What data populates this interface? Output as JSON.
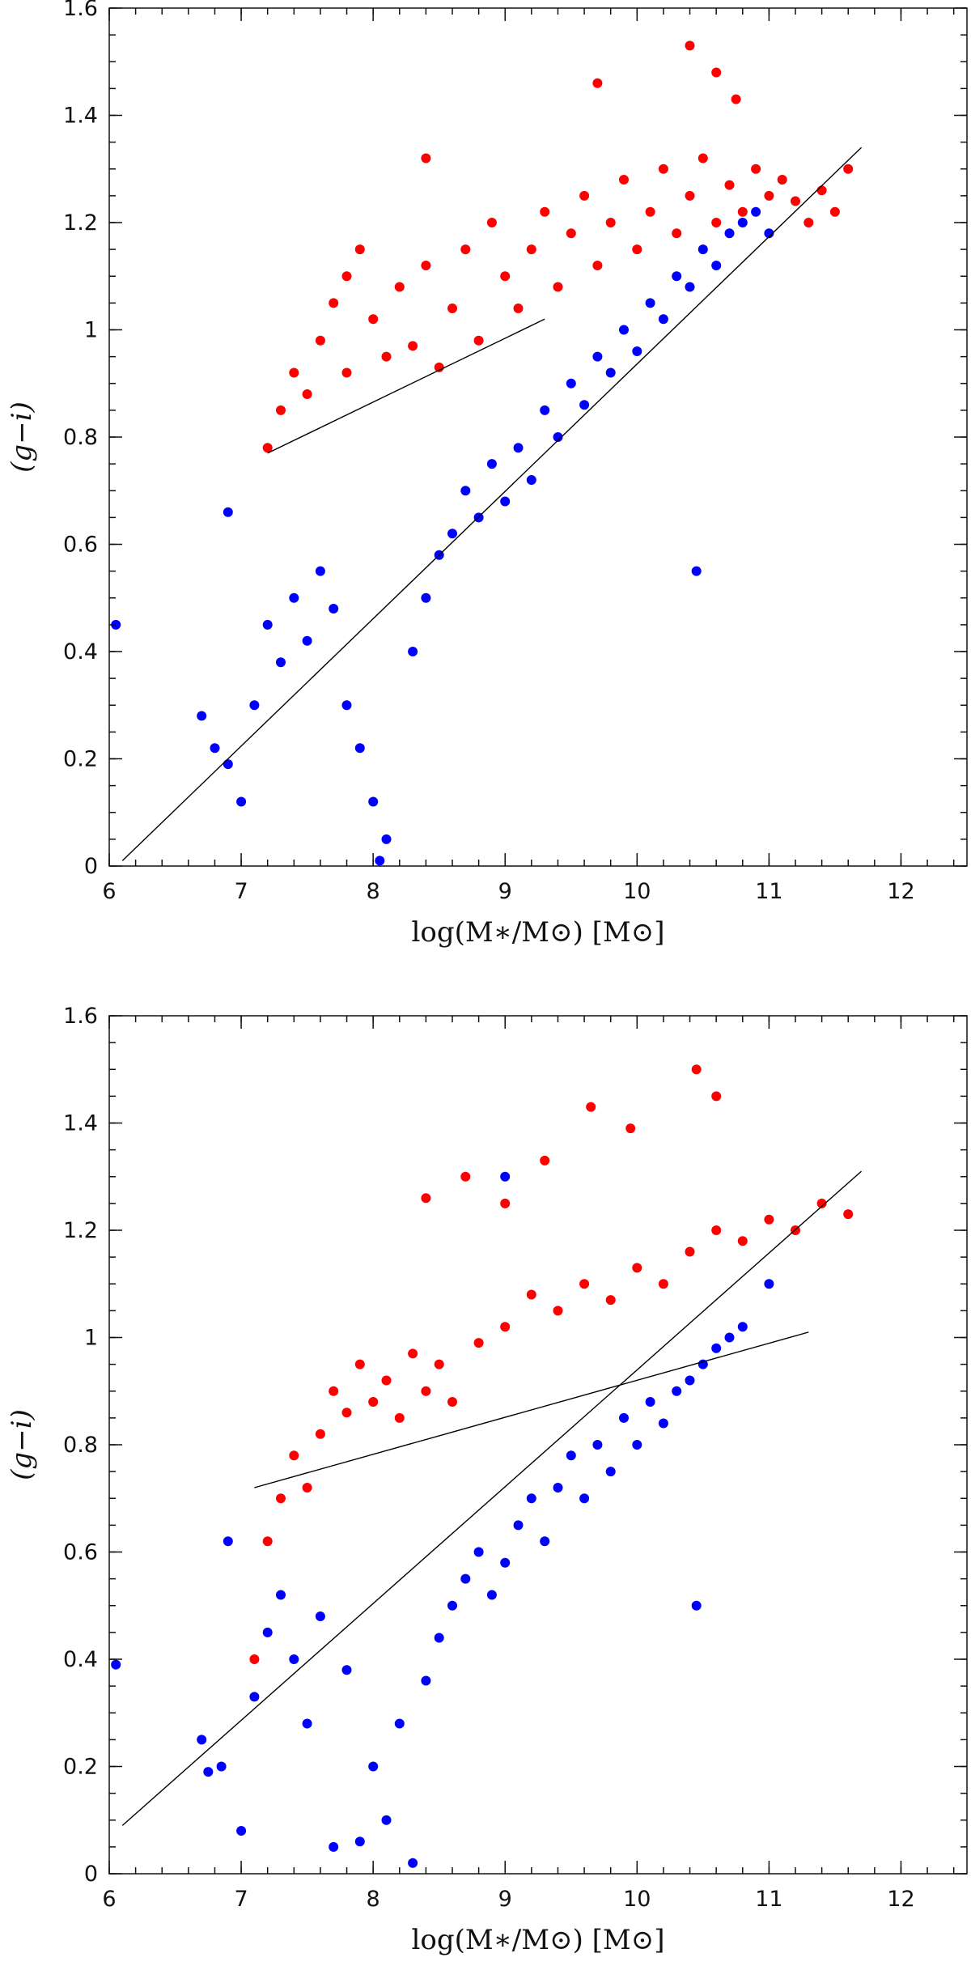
{
  "chart_data": [
    {
      "type": "scatter",
      "title": "",
      "xlabel": "log(M∗/M⊙) [M⊙]",
      "ylabel": "(g−i)",
      "xlim": [
        6,
        12.5
      ],
      "ylim": [
        0,
        1.6
      ],
      "xticks": [
        6,
        7,
        8,
        9,
        10,
        11,
        12
      ],
      "yticks": [
        0,
        0.2,
        0.4,
        0.6,
        0.8,
        1,
        1.2,
        1.4,
        1.6
      ],
      "xtick_labels": [
        "6",
        "7",
        "8",
        "9",
        "10",
        "11",
        "12"
      ],
      "ytick_labels": [
        "0",
        "0.2",
        "0.4",
        "0.6",
        "0.8",
        "1",
        "1.2",
        "1.4",
        "1.6"
      ],
      "series": [
        {
          "name": "red",
          "color": "#ff0000",
          "points": [
            [
              7.2,
              0.78
            ],
            [
              7.3,
              0.85
            ],
            [
              7.4,
              0.92
            ],
            [
              7.5,
              0.88
            ],
            [
              7.6,
              0.98
            ],
            [
              7.7,
              1.05
            ],
            [
              7.8,
              1.1
            ],
            [
              7.8,
              0.92
            ],
            [
              7.9,
              1.15
            ],
            [
              8,
              1.02
            ],
            [
              8.1,
              0.95
            ],
            [
              8.2,
              1.08
            ],
            [
              8.3,
              0.97
            ],
            [
              8.4,
              1.12
            ],
            [
              8.5,
              0.93
            ],
            [
              8.6,
              1.04
            ],
            [
              8.7,
              1.15
            ],
            [
              8.8,
              0.98
            ],
            [
              8.9,
              1.2
            ],
            [
              9,
              1.1
            ],
            [
              9.1,
              1.04
            ],
            [
              9.2,
              1.15
            ],
            [
              9.3,
              1.22
            ],
            [
              9.4,
              1.08
            ],
            [
              9.5,
              1.18
            ],
            [
              9.6,
              1.25
            ],
            [
              9.7,
              1.12
            ],
            [
              9.8,
              1.2
            ],
            [
              9.9,
              1.28
            ],
            [
              10,
              1.15
            ],
            [
              10.1,
              1.22
            ],
            [
              10.2,
              1.3
            ],
            [
              10.3,
              1.18
            ],
            [
              10.4,
              1.25
            ],
            [
              10.5,
              1.32
            ],
            [
              10.6,
              1.2
            ],
            [
              10.7,
              1.27
            ],
            [
              10.8,
              1.22
            ],
            [
              10.9,
              1.3
            ],
            [
              11,
              1.25
            ],
            [
              11.1,
              1.28
            ],
            [
              11.2,
              1.24
            ],
            [
              11.3,
              1.2
            ],
            [
              11.4,
              1.26
            ],
            [
              11.5,
              1.22
            ],
            [
              11.6,
              1.3
            ],
            [
              10.4,
              1.53
            ],
            [
              10.6,
              1.48
            ],
            [
              9.7,
              1.46
            ],
            [
              10.75,
              1.43
            ],
            [
              8.4,
              1.32
            ]
          ]
        },
        {
          "name": "blue",
          "color": "#0000ff",
          "points": [
            [
              6.05,
              0.45
            ],
            [
              6.7,
              0.28
            ],
            [
              6.8,
              0.22
            ],
            [
              6.9,
              0.19
            ],
            [
              7,
              0.12
            ],
            [
              7.1,
              0.3
            ],
            [
              7.2,
              0.45
            ],
            [
              7.3,
              0.38
            ],
            [
              7.4,
              0.5
            ],
            [
              7.5,
              0.42
            ],
            [
              7.6,
              0.55
            ],
            [
              7.7,
              0.48
            ],
            [
              7.8,
              0.3
            ],
            [
              7.9,
              0.22
            ],
            [
              8,
              0.12
            ],
            [
              8.05,
              0.01
            ],
            [
              8.1,
              0.05
            ],
            [
              8.3,
              0.4
            ],
            [
              8.4,
              0.5
            ],
            [
              8.5,
              0.58
            ],
            [
              8.6,
              0.62
            ],
            [
              8.7,
              0.7
            ],
            [
              8.8,
              0.65
            ],
            [
              8.9,
              0.75
            ],
            [
              9,
              0.68
            ],
            [
              9.1,
              0.78
            ],
            [
              9.2,
              0.72
            ],
            [
              9.3,
              0.85
            ],
            [
              9.4,
              0.8
            ],
            [
              9.5,
              0.9
            ],
            [
              9.6,
              0.86
            ],
            [
              9.7,
              0.95
            ],
            [
              9.8,
              0.92
            ],
            [
              9.9,
              1
            ],
            [
              10,
              0.96
            ],
            [
              10.1,
              1.05
            ],
            [
              10.2,
              1.02
            ],
            [
              10.3,
              1.1
            ],
            [
              10.4,
              1.08
            ],
            [
              10.5,
              1.15
            ],
            [
              10.6,
              1.12
            ],
            [
              10.7,
              1.18
            ],
            [
              10.8,
              1.2
            ],
            [
              10.9,
              1.22
            ],
            [
              11,
              1.18
            ],
            [
              10.45,
              0.55
            ],
            [
              6.9,
              0.66
            ]
          ]
        }
      ],
      "fit_lines": [
        {
          "x": [
            6.1,
            11.7
          ],
          "y": [
            0.01,
            1.34
          ],
          "color": "#000000"
        },
        {
          "x": [
            7.2,
            9.3
          ],
          "y": [
            0.77,
            1.02
          ],
          "color": "#000000"
        }
      ]
    },
    {
      "type": "scatter",
      "title": "",
      "xlabel": "log(M∗/M⊙) [M⊙]",
      "ylabel": "(g−i)",
      "xlim": [
        6,
        12.5
      ],
      "ylim": [
        0,
        1.6
      ],
      "xticks": [
        6,
        7,
        8,
        9,
        10,
        11,
        12
      ],
      "yticks": [
        0,
        0.2,
        0.4,
        0.6,
        0.8,
        1,
        1.2,
        1.4,
        1.6
      ],
      "xtick_labels": [
        "6",
        "7",
        "8",
        "9",
        "10",
        "11",
        "12"
      ],
      "ytick_labels": [
        "0",
        "0.2",
        "0.4",
        "0.6",
        "0.8",
        "1",
        "1.2",
        "1.4",
        "1.6"
      ],
      "series": [
        {
          "name": "red",
          "color": "#ff0000",
          "points": [
            [
              7.1,
              0.4
            ],
            [
              7.2,
              0.62
            ],
            [
              7.3,
              0.7
            ],
            [
              7.4,
              0.78
            ],
            [
              7.5,
              0.72
            ],
            [
              7.6,
              0.82
            ],
            [
              7.7,
              0.9
            ],
            [
              7.8,
              0.86
            ],
            [
              7.9,
              0.95
            ],
            [
              8,
              0.88
            ],
            [
              8.1,
              0.92
            ],
            [
              8.2,
              0.85
            ],
            [
              8.3,
              0.97
            ],
            [
              8.4,
              0.9
            ],
            [
              8.5,
              0.95
            ],
            [
              8.6,
              0.88
            ],
            [
              8.8,
              0.99
            ],
            [
              9,
              1.02
            ],
            [
              9.2,
              1.08
            ],
            [
              9.4,
              1.05
            ],
            [
              9.6,
              1.1
            ],
            [
              9.8,
              1.07
            ],
            [
              10,
              1.13
            ],
            [
              10.2,
              1.1
            ],
            [
              10.4,
              1.16
            ],
            [
              10.6,
              1.2
            ],
            [
              10.8,
              1.18
            ],
            [
              11,
              1.22
            ],
            [
              11.2,
              1.2
            ],
            [
              11.4,
              1.25
            ],
            [
              11.6,
              1.23
            ],
            [
              10.45,
              1.5
            ],
            [
              10.6,
              1.45
            ],
            [
              9.65,
              1.43
            ],
            [
              9.95,
              1.39
            ],
            [
              8.4,
              1.26
            ],
            [
              8.7,
              1.3
            ],
            [
              9.3,
              1.33
            ],
            [
              9,
              1.25
            ]
          ]
        },
        {
          "name": "blue",
          "color": "#0000ff",
          "points": [
            [
              6.05,
              0.39
            ],
            [
              6.7,
              0.25
            ],
            [
              6.75,
              0.19
            ],
            [
              6.85,
              0.2
            ],
            [
              6.9,
              0.62
            ],
            [
              7,
              0.08
            ],
            [
              7.1,
              0.33
            ],
            [
              7.2,
              0.45
            ],
            [
              7.3,
              0.52
            ],
            [
              7.4,
              0.4
            ],
            [
              7.5,
              0.28
            ],
            [
              7.6,
              0.48
            ],
            [
              7.7,
              0.05
            ],
            [
              7.8,
              0.38
            ],
            [
              7.9,
              0.06
            ],
            [
              8,
              0.2
            ],
            [
              8.1,
              0.1
            ],
            [
              8.2,
              0.28
            ],
            [
              8.3,
              0.02
            ],
            [
              8.4,
              0.36
            ],
            [
              8.5,
              0.44
            ],
            [
              8.6,
              0.5
            ],
            [
              8.7,
              0.55
            ],
            [
              8.8,
              0.6
            ],
            [
              8.9,
              0.52
            ],
            [
              9,
              0.58
            ],
            [
              9.1,
              0.65
            ],
            [
              9.2,
              0.7
            ],
            [
              9.3,
              0.62
            ],
            [
              9.4,
              0.72
            ],
            [
              9.5,
              0.78
            ],
            [
              9.6,
              0.7
            ],
            [
              9.7,
              0.8
            ],
            [
              9.8,
              0.75
            ],
            [
              9.9,
              0.85
            ],
            [
              10,
              0.8
            ],
            [
              10.1,
              0.88
            ],
            [
              10.2,
              0.84
            ],
            [
              10.3,
              0.9
            ],
            [
              10.4,
              0.92
            ],
            [
              10.5,
              0.95
            ],
            [
              10.6,
              0.98
            ],
            [
              10.7,
              1
            ],
            [
              10.8,
              1.02
            ],
            [
              11,
              1.1
            ],
            [
              10.45,
              0.5
            ],
            [
              9,
              1.3
            ]
          ]
        }
      ],
      "fit_lines": [
        {
          "x": [
            6.1,
            11.7
          ],
          "y": [
            0.09,
            1.31
          ],
          "color": "#000000"
        },
        {
          "x": [
            7.1,
            11.3
          ],
          "y": [
            0.72,
            1.01
          ],
          "color": "#000000"
        }
      ]
    }
  ]
}
